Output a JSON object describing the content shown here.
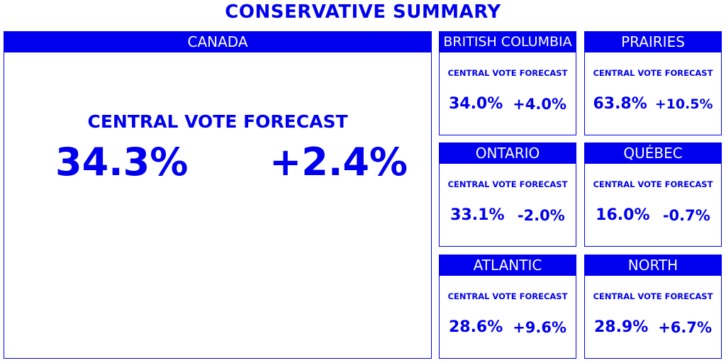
{
  "title": "CONSERVATIVE SUMMARY",
  "colors": {
    "accent": "#0000ee",
    "background": "#ffffff"
  },
  "national": {
    "name": "CANADA",
    "label": "CENTRAL VOTE FORECAST",
    "vote": "34.3%",
    "change": "+2.4%"
  },
  "regions": [
    {
      "name": "BRITISH COLUMBIA",
      "label": "CENTRAL VOTE FORECAST",
      "vote": "34.0%",
      "change": "+4.0%"
    },
    {
      "name": "PRAIRIES",
      "label": "CENTRAL VOTE FORECAST",
      "vote": "63.8%",
      "change": "+10.5%"
    },
    {
      "name": "ONTARIO",
      "label": "CENTRAL VOTE FORECAST",
      "vote": "33.1%",
      "change": "-2.0%"
    },
    {
      "name": "QUÉBEC",
      "label": "CENTRAL VOTE FORECAST",
      "vote": "16.0%",
      "change": "-0.7%"
    },
    {
      "name": "ATLANTIC",
      "label": "CENTRAL VOTE FORECAST",
      "vote": "28.6%",
      "change": "+9.6%"
    },
    {
      "name": "NORTH",
      "label": "CENTRAL VOTE FORECAST",
      "vote": "28.9%",
      "change": "+6.7%"
    }
  ]
}
